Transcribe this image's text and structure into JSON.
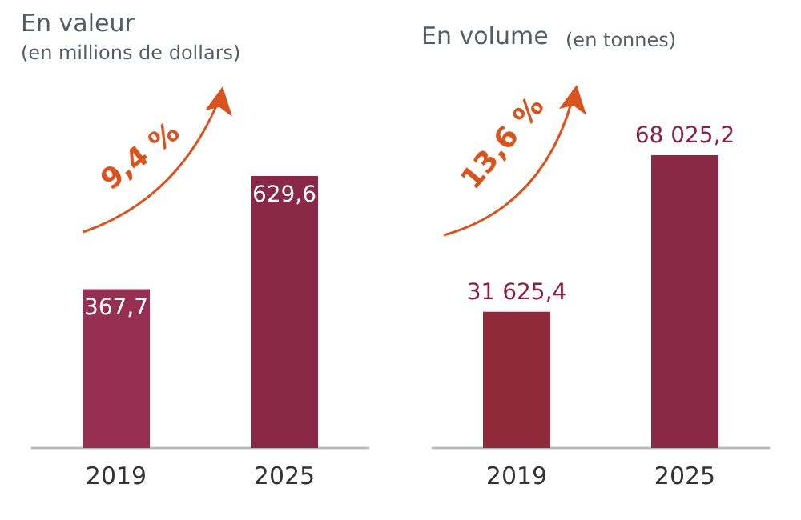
{
  "chart_data": [
    {
      "type": "bar",
      "title": "En valeur",
      "subtitle": "(en millions de dollars)",
      "categories": [
        "2019",
        "2025"
      ],
      "values": [
        367.7,
        629.6
      ],
      "value_labels": [
        "367,7",
        "629,6"
      ],
      "colors": [
        "#962f52",
        "#8a2848"
      ],
      "annotations": [
        "9,4 %"
      ]
    },
    {
      "type": "bar",
      "title": "En volume",
      "subtitle": "(en tonnes)",
      "categories": [
        "2019",
        "2025"
      ],
      "values": [
        31625.4,
        68025.2
      ],
      "value_labels": [
        "31 625,4",
        "68 025,2"
      ],
      "colors": [
        "#8e2a3a",
        "#8a2848"
      ],
      "annotations": [
        "13,6 %"
      ]
    }
  ]
}
